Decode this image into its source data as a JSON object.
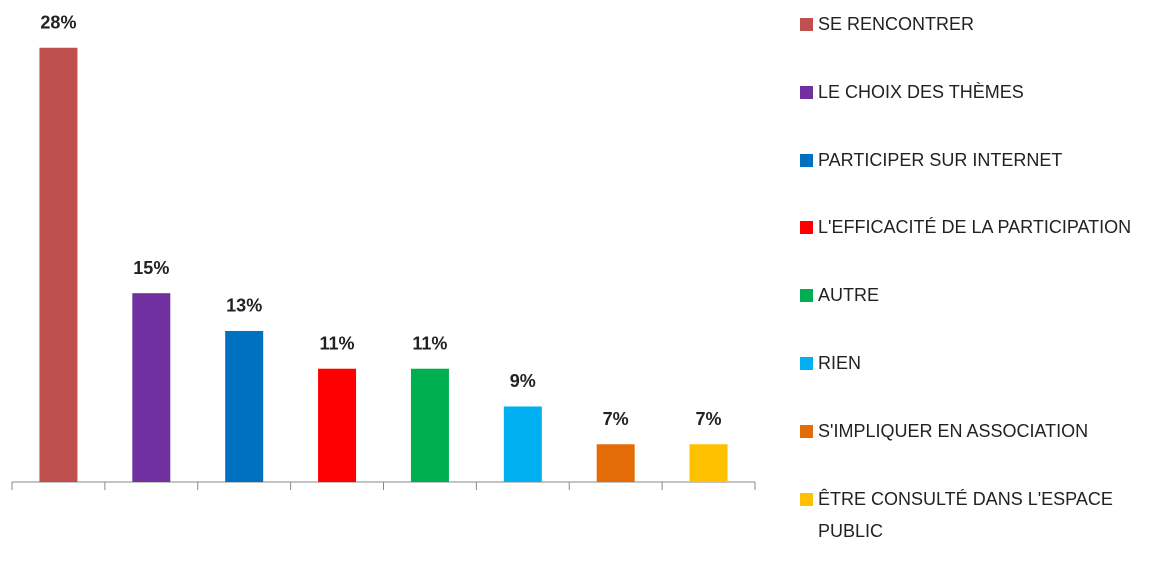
{
  "chart_data": {
    "type": "bar",
    "categories": [
      "SE RENCONTRER",
      "LE CHOIX DES THÈMES",
      "PARTICIPER SUR INTERNET",
      "L'EFFICACITÉ DE LA PARTICIPATION",
      "AUTRE",
      "RIEN",
      "S'IMPLIQUER EN ASSOCIATION",
      "ÊTRE CONSULTÉ DANS L'ESPACE PUBLIC"
    ],
    "values": [
      28,
      15,
      13,
      11,
      11,
      9,
      7,
      7
    ],
    "value_labels": [
      "28%",
      "15%",
      "13%",
      "11%",
      "11%",
      "9%",
      "7%",
      "7%"
    ],
    "colors": [
      "#c0504d",
      "#7030a0",
      "#0070c0",
      "#ff0000",
      "#00b050",
      "#00b0f0",
      "#e36c09",
      "#ffc000"
    ],
    "ylim": [
      5,
      30
    ],
    "legend": "right"
  }
}
